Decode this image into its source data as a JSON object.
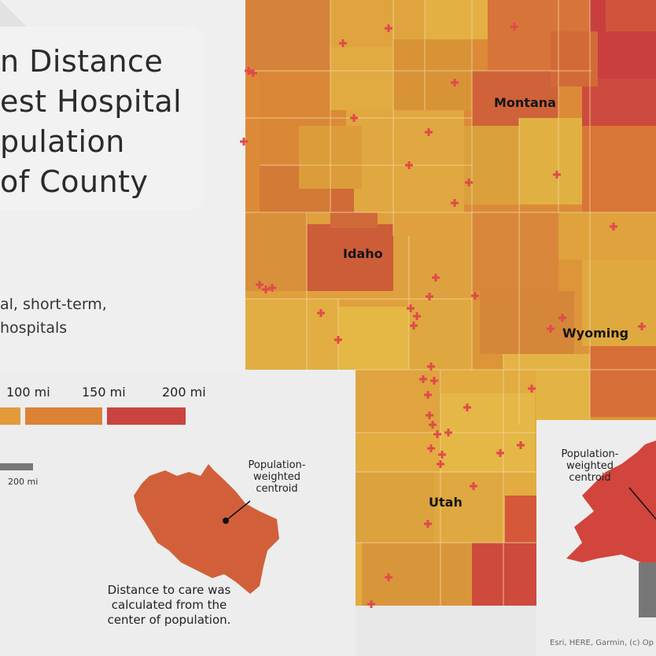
{
  "title": {
    "lines": [
      "n Distance",
      "est Hospital",
      "pulation",
      "of County"
    ]
  },
  "legend": {
    "description_lines": [
      "al, short-term,",
      " hospitals"
    ],
    "ticks": [
      "100 mi",
      "150 mi",
      "200 mi"
    ],
    "scalebar_label": "200 mi",
    "colors": [
      "#e39a3a",
      "#db7a33",
      "#c9443f"
    ]
  },
  "states": [
    "Montana",
    "Idaho",
    "Wyoming",
    "Utah"
  ],
  "inset_left": {
    "annotation": "Population-\nweighted\ncentroid",
    "caption": "Distance to care was\ncalculated from the\ncenter of population.",
    "color": "#d1603a"
  },
  "inset_right": {
    "annotation": "Population-\nweighted\ncentroid",
    "color": "#d1453d"
  },
  "attribution": "Esri, HERE, Garmin, (c) Op",
  "hospital_marker_color": "#e04a4a",
  "map_colors": {
    "background": "#e8e8e8",
    "panel": "#efefef",
    "light": "#e3b041",
    "mid": "#d98a36",
    "dark": "#cf5c39",
    "darkest": "#c83b40"
  }
}
